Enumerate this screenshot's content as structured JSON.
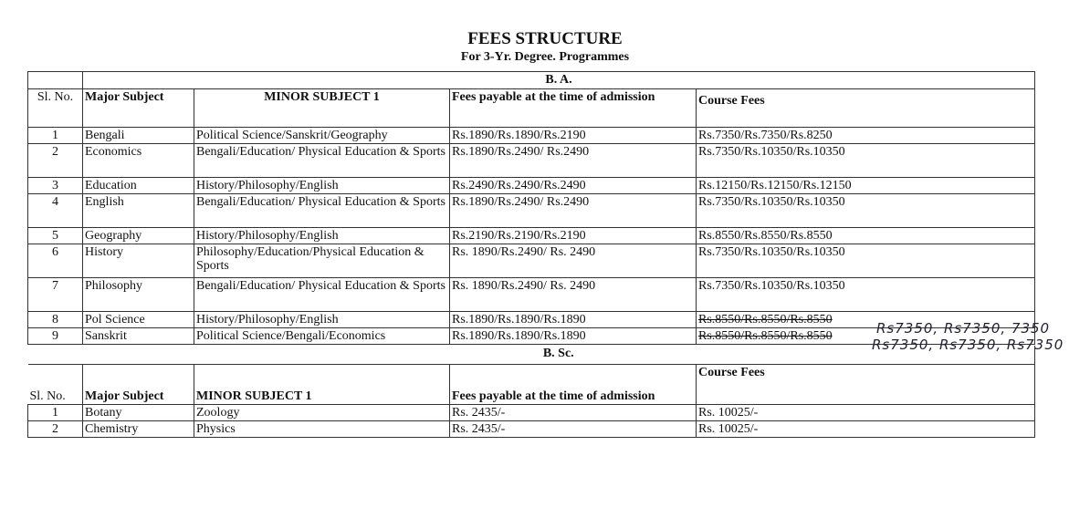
{
  "title": "FEES STRUCTURE",
  "subtitle": "For 3-Yr. Degree. Programmes",
  "ba": {
    "section": "B. A.",
    "headers": [
      "Sl. No.",
      "Major Subject",
      "MINOR SUBJECT 1",
      "Fees payable at the time of admission",
      "Course Fees"
    ],
    "rows": [
      [
        "1",
        "Bengali",
        "Political Science/Sanskrit/Geography",
        "Rs.1890/Rs.1890/Rs.2190",
        "Rs.7350/Rs.7350/Rs.8250"
      ],
      [
        "2",
        "Economics",
        "Bengali/Education/ Physical Education & Sports",
        "Rs.1890/Rs.2490/ Rs.2490",
        "Rs.7350/Rs.10350/Rs.10350"
      ],
      [
        "3",
        "Education",
        "History/Philosophy/English",
        "Rs.2490/Rs.2490/Rs.2490",
        "Rs.12150/Rs.12150/Rs.12150"
      ],
      [
        "4",
        "English",
        "Bengali/Education/ Physical Education & Sports",
        "Rs.1890/Rs.2490/ Rs.2490",
        "Rs.7350/Rs.10350/Rs.10350"
      ],
      [
        "5",
        "Geography",
        "History/Philosophy/English",
        "Rs.2190/Rs.2190/Rs.2190",
        "Rs.8550/Rs.8550/Rs.8550"
      ],
      [
        "6",
        "History",
        "Philosophy/Education/Physical Education & Sports",
        "Rs. 1890/Rs.2490/ Rs. 2490",
        "Rs.7350/Rs.10350/Rs.10350"
      ],
      [
        "7",
        "Philosophy",
        "Bengali/Education/ Physical Education & Sports",
        "Rs. 1890/Rs.2490/ Rs. 2490",
        "Rs.7350/Rs.10350/Rs.10350"
      ],
      [
        "8",
        "Pol Science",
        "History/Philosophy/English",
        "Rs.1890/Rs.1890/Rs.1890",
        "Rs.8550/Rs.8550/Rs.8550"
      ],
      [
        "9",
        "Sanskrit",
        "Political Science/Bengali/Economics",
        "Rs.1890/Rs.1890/Rs.1890",
        "Rs.8550/Rs.8550/Rs.8550"
      ]
    ],
    "handwritten": [
      "Rs7350, Rs7350, 7350",
      "Rs7350, Rs7350, Rs7350"
    ]
  },
  "bsc": {
    "section": "B. Sc.",
    "headers": [
      "Sl. No.",
      "Major Subject",
      "MINOR SUBJECT 1",
      "Fees payable at the time of admission",
      "Course Fees"
    ],
    "rows": [
      [
        "1",
        "Botany",
        "Zoology",
        "Rs. 2435/-",
        "Rs. 10025/-"
      ],
      [
        "2",
        "Chemistry",
        "Physics",
        "Rs. 2435/-",
        "Rs. 10025/-"
      ]
    ]
  }
}
